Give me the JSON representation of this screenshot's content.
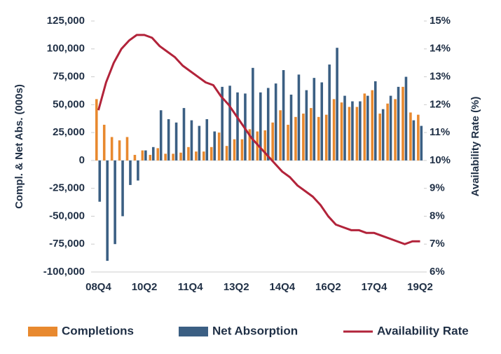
{
  "chart_data": {
    "type": "bar_line",
    "categories": [
      "08Q4",
      null,
      null,
      null,
      null,
      null,
      "10Q2",
      null,
      null,
      null,
      null,
      null,
      "11Q4",
      null,
      null,
      null,
      null,
      null,
      "13Q2",
      null,
      null,
      null,
      null,
      null,
      "14Q4",
      null,
      null,
      null,
      null,
      null,
      "16Q2",
      null,
      null,
      null,
      null,
      null,
      "17Q4",
      null,
      null,
      null,
      null,
      null,
      "19Q2"
    ],
    "series": [
      {
        "name": "Completions",
        "color": "#e8892f",
        "kind": "bar",
        "values": [
          55000,
          32000,
          21000,
          18000,
          21000,
          5000,
          9000,
          5000,
          11000,
          6000,
          6000,
          7000,
          12000,
          8000,
          8000,
          12000,
          25000,
          13000,
          19000,
          19000,
          28000,
          26000,
          27000,
          34000,
          45000,
          32000,
          39000,
          42000,
          47000,
          39000,
          41000,
          55000,
          52000,
          48000,
          48000,
          60000,
          63000,
          42000,
          51000,
          55000,
          66000,
          43000,
          41000
        ]
      },
      {
        "name": "Net Absorption",
        "color": "#3b5f83",
        "kind": "bar",
        "values": [
          -37000,
          -90000,
          -75000,
          -50000,
          -22000,
          -18000,
          9000,
          12000,
          45000,
          37000,
          34000,
          47000,
          36000,
          31000,
          37000,
          26000,
          66000,
          67000,
          61000,
          60000,
          83000,
          61000,
          65000,
          69000,
          81000,
          59000,
          77000,
          63000,
          74000,
          70000,
          86000,
          101000,
          58000,
          53000,
          53000,
          58000,
          71000,
          46000,
          58000,
          66000,
          75000,
          36000,
          31000
        ]
      },
      {
        "name": "Availability Rate",
        "color": "#b2233a",
        "kind": "line",
        "axis": "y2",
        "values": [
          11.8,
          12.8,
          13.5,
          14.0,
          14.3,
          14.5,
          14.5,
          14.4,
          14.1,
          13.9,
          13.7,
          13.4,
          13.2,
          13.0,
          12.8,
          12.7,
          12.3,
          12.0,
          11.6,
          11.2,
          10.8,
          10.5,
          10.2,
          9.9,
          9.6,
          9.4,
          9.1,
          8.9,
          8.7,
          8.4,
          8.0,
          7.7,
          7.6,
          7.5,
          7.5,
          7.4,
          7.4,
          7.3,
          7.2,
          7.1,
          7.0,
          7.1,
          7.1
        ]
      }
    ],
    "ylabel": "Compl. & Net Abs. (000s)",
    "y2label": "Availability Rate (%)",
    "ylim": [
      -100000,
      125000
    ],
    "yticks": [
      {
        "value": -100000,
        "label": "-100,000"
      },
      {
        "value": -75000,
        "label": "-75,000"
      },
      {
        "value": -50000,
        "label": "-50,000"
      },
      {
        "value": -25000,
        "label": "-25,000"
      },
      0,
      {
        "value": 25000,
        "label": "25,000"
      },
      {
        "value": 50000,
        "label": "50,000"
      },
      {
        "value": 75000,
        "label": "75,000"
      },
      {
        "value": 100000,
        "label": "100,000"
      },
      {
        "value": 125000,
        "label": "125,000"
      }
    ],
    "y2lim": [
      6,
      15
    ],
    "y2ticks": [
      {
        "value": 6,
        "label": "6%"
      },
      {
        "value": 7,
        "label": "7%"
      },
      {
        "value": 8,
        "label": "8%"
      },
      {
        "value": 9,
        "label": "9%"
      },
      {
        "value": 10,
        "label": "10%"
      },
      {
        "value": 11,
        "label": "11%"
      },
      {
        "value": 12,
        "label": "12%"
      },
      {
        "value": 13,
        "label": "13%"
      },
      {
        "value": 14,
        "label": "14%"
      },
      {
        "value": 15,
        "label": "15%"
      }
    ],
    "legend": "bottom",
    "grid": false
  }
}
